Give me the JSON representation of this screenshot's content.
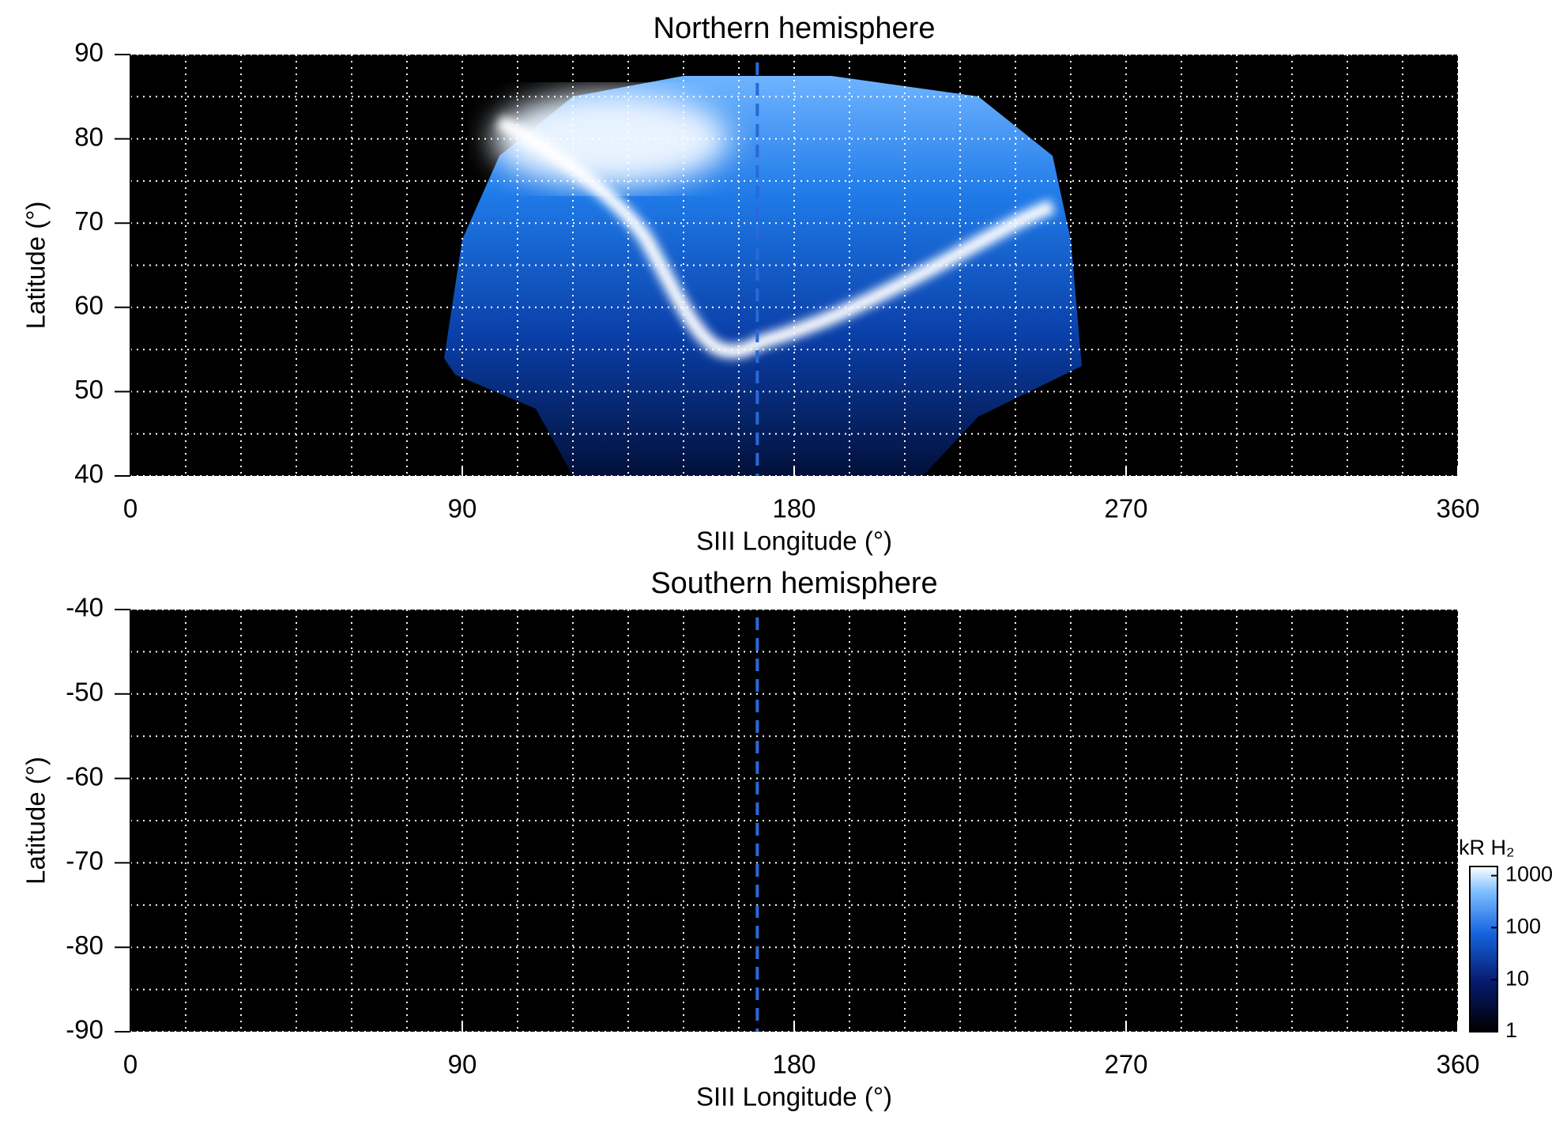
{
  "chart_data": [
    {
      "type": "map",
      "title": "Northern hemisphere",
      "xlabel": "SIII Longitude (°)",
      "ylabel": "Latitude (°)",
      "xlim": [
        0,
        360
      ],
      "xticks": [
        0,
        90,
        180,
        270,
        360
      ],
      "ylim": [
        40,
        90
      ],
      "yticks": [
        40,
        50,
        60,
        70,
        80,
        90
      ],
      "grid": true,
      "xgrid": [
        0,
        15,
        30,
        45,
        60,
        75,
        90,
        105,
        120,
        135,
        150,
        165,
        180,
        195,
        210,
        225,
        240,
        255,
        270,
        285,
        300,
        315,
        330,
        345,
        360
      ],
      "ygrid": [
        40,
        45,
        50,
        55,
        60,
        65,
        70,
        75,
        80,
        85,
        90
      ],
      "reference_x": 170
    },
    {
      "type": "map",
      "title": "Southern hemisphere",
      "xlabel": "SIII Longitude (°)",
      "ylabel": "Latitude (°)",
      "xlim": [
        0,
        360
      ],
      "xticks": [
        0,
        90,
        180,
        270,
        360
      ],
      "ylim": [
        -90,
        -40
      ],
      "yticks": [
        -90,
        -80,
        -70,
        -60,
        -50,
        -40
      ],
      "grid": true,
      "xgrid": [
        0,
        15,
        30,
        45,
        60,
        75,
        90,
        105,
        120,
        135,
        150,
        165,
        180,
        195,
        210,
        225,
        240,
        255,
        270,
        285,
        300,
        315,
        330,
        345,
        360
      ],
      "ygrid": [
        -90,
        -85,
        -80,
        -75,
        -70,
        -65,
        -60,
        -55,
        -50,
        -45,
        -40
      ],
      "reference_x": 170,
      "colorbar": {
        "label": "kR H₂",
        "log": true,
        "lim": [
          1,
          1500
        ],
        "ticks": [
          1,
          10,
          100,
          1000
        ]
      }
    }
  ]
}
